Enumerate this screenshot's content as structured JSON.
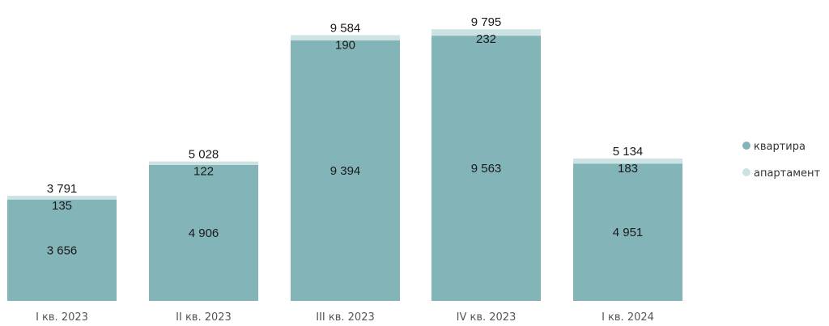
{
  "chart_data": {
    "type": "bar",
    "stacked": true,
    "categories": [
      "I кв. 2023",
      "II кв. 2023",
      "III кв. 2023",
      "IV кв. 2023",
      "I кв. 2024"
    ],
    "series": [
      {
        "name": "квартира",
        "values": [
          3656,
          4906,
          9394,
          9563,
          4951
        ],
        "color": "#82b4b8",
        "labels": [
          "3 656",
          "4 906",
          "9 394",
          "9 563",
          "4 951"
        ]
      },
      {
        "name": "апартамент",
        "values": [
          135,
          122,
          190,
          232,
          183
        ],
        "color": "#cde2e3",
        "labels": [
          "135",
          "122",
          "190",
          "232",
          "183"
        ]
      }
    ],
    "totals": [
      3791,
      5028,
      9584,
      9795,
      5134
    ],
    "total_labels": [
      "3 791",
      "5 028",
      "9 584",
      "9 795",
      "5 134"
    ],
    "ylim": [
      0,
      10500
    ],
    "grid": false,
    "legend_position": "right",
    "title": "",
    "xlabel": "",
    "ylabel": ""
  }
}
